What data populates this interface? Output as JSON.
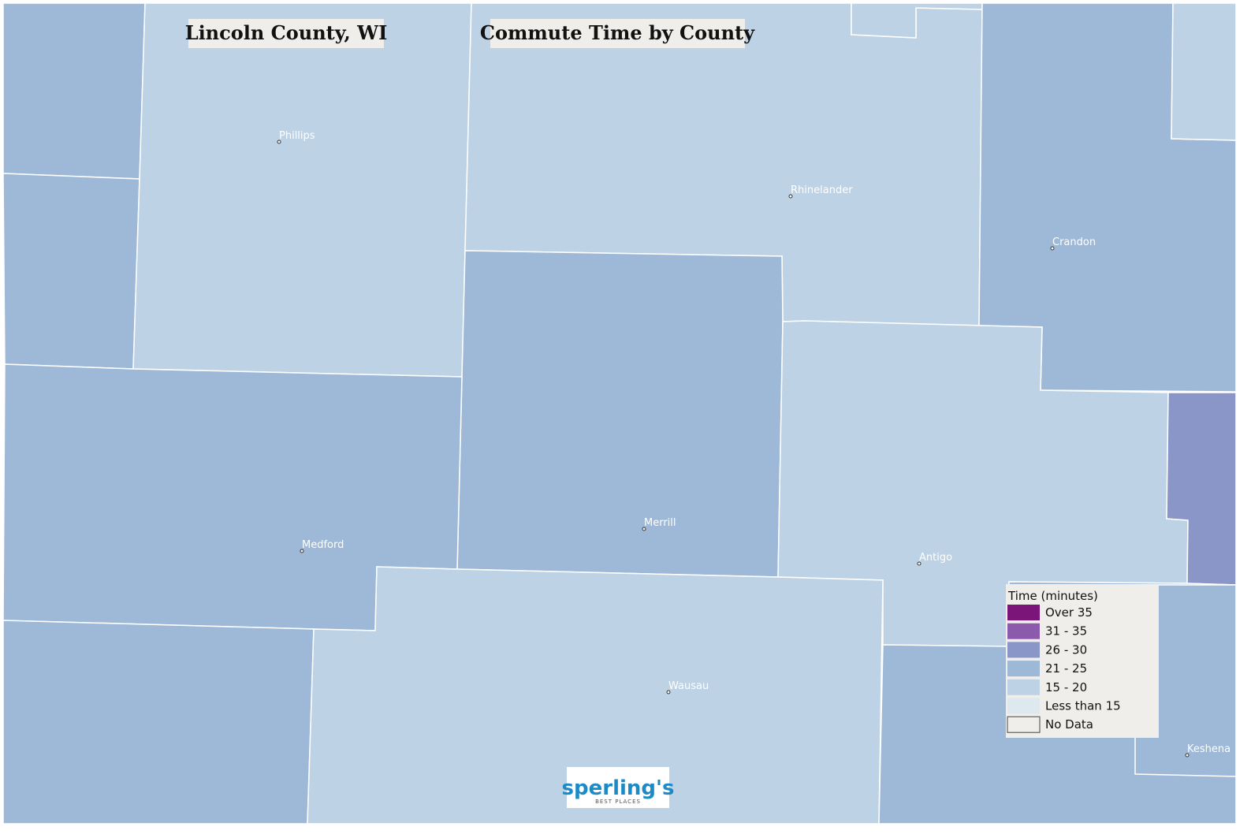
{
  "titles": [
    "Lincoln County, WI",
    "Commute Time by County"
  ],
  "cities": [
    "Phillips",
    "Rhinelander",
    "Crandon",
    "Medford",
    "Merrill",
    "Antigo",
    "Wausau",
    "Keshena"
  ],
  "legend": {
    "title": "Time (minutes)",
    "items": [
      {
        "label": "Over 35",
        "color": "#7b157a"
      },
      {
        "label": "31 - 35",
        "color": "#8b5aac"
      },
      {
        "label": "26 - 30",
        "color": "#8a96c8"
      },
      {
        "label": "21 - 25",
        "color": "#9eb9d8"
      },
      {
        "label": "15 - 20",
        "color": "#bed2e5"
      },
      {
        "label": "Less than 15",
        "color": "#dde8ef"
      },
      {
        "label": "No Data",
        "color": "#f0eeea"
      }
    ]
  },
  "logo": {
    "name": "sperling's",
    "tagline": "BEST PLACES"
  }
}
